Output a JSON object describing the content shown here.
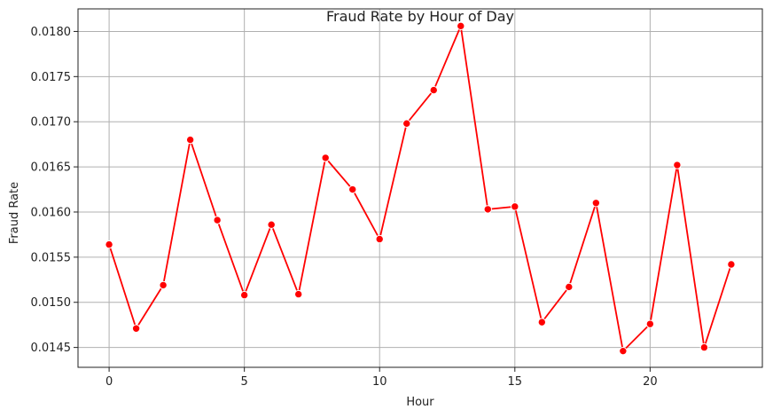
{
  "chart_data": {
    "type": "line",
    "title": "Fraud Rate by Hour of Day",
    "xlabel": "Hour",
    "ylabel": "Fraud Rate",
    "xlim": [
      -1.15,
      24.15
    ],
    "ylim": [
      0.01428,
      0.01825
    ],
    "x_ticks": [
      0,
      5,
      10,
      15,
      20
    ],
    "y_ticks": [
      0.0145,
      0.015,
      0.0155,
      0.016,
      0.0165,
      0.017,
      0.0175,
      0.018
    ],
    "y_tick_labels": [
      "0.0145",
      "0.0150",
      "0.0155",
      "0.0160",
      "0.0165",
      "0.0170",
      "0.0175",
      "0.0180"
    ],
    "grid": true,
    "legend": null,
    "series": [
      {
        "color": "#ff0000",
        "marker": "circle",
        "x": [
          0,
          1,
          2,
          3,
          4,
          5,
          6,
          7,
          8,
          9,
          10,
          11,
          12,
          13,
          14,
          15,
          16,
          17,
          18,
          19,
          20,
          21,
          22,
          23
        ],
        "values": [
          0.01564,
          0.01471,
          0.01519,
          0.0168,
          0.01591,
          0.01508,
          0.01586,
          0.01509,
          0.0166,
          0.01625,
          0.0157,
          0.01698,
          0.01735,
          0.01806,
          0.01603,
          0.01606,
          0.01478,
          0.01517,
          0.0161,
          0.01446,
          0.01476,
          0.01652,
          0.0145,
          0.01542
        ]
      }
    ]
  }
}
